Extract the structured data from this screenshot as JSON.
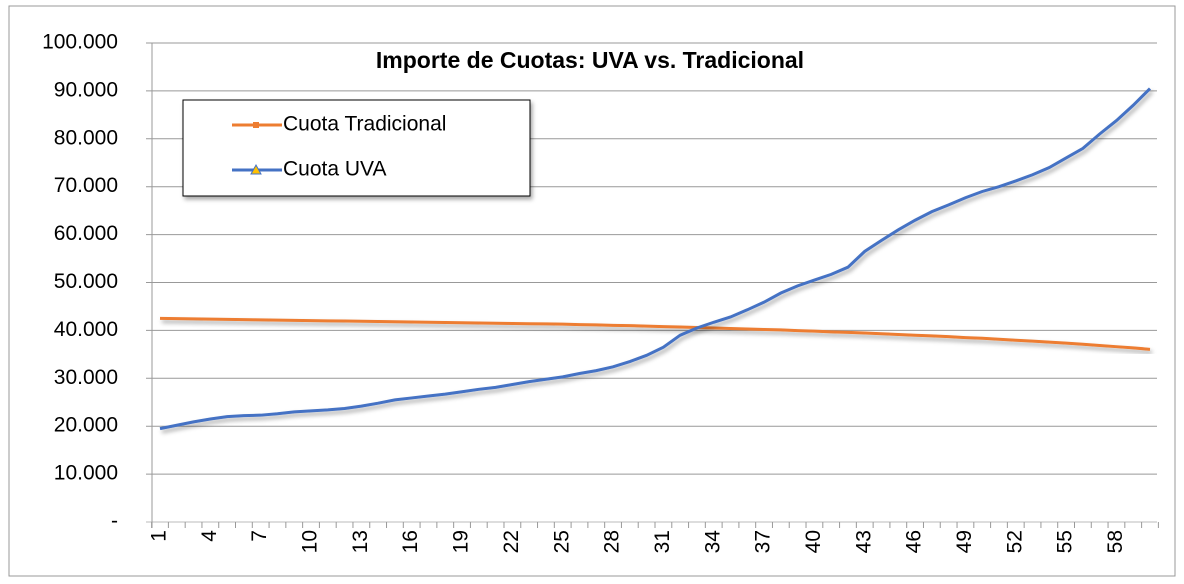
{
  "chart_data": {
    "type": "line",
    "title": "Importe de Cuotas: UVA vs. Tradicional",
    "categories": [
      "1",
      null,
      null,
      "4",
      null,
      null,
      "7",
      null,
      null,
      "10",
      null,
      null,
      "13",
      null,
      null,
      "16",
      null,
      null,
      "19",
      null,
      null,
      "22",
      null,
      null,
      "25",
      null,
      null,
      "28",
      null,
      null,
      "31",
      null,
      null,
      "34",
      null,
      null,
      "37",
      null,
      null,
      "40",
      null,
      null,
      "43",
      null,
      null,
      "46",
      null,
      null,
      "49",
      null,
      null,
      "52",
      null,
      null,
      "55",
      null,
      null,
      "58",
      null,
      null
    ],
    "series": [
      {
        "name": "Cuota Tradicional",
        "color": "#ed7d31",
        "marker": "square",
        "values": [
          42500,
          42450,
          42400,
          42350,
          42300,
          42250,
          42200,
          42150,
          42100,
          42050,
          42000,
          41950,
          41900,
          41850,
          41800,
          41750,
          41700,
          41650,
          41600,
          41550,
          41500,
          41450,
          41400,
          41350,
          41300,
          41200,
          41150,
          41050,
          41000,
          40900,
          40800,
          40700,
          40600,
          40500,
          40400,
          40300,
          40200,
          40100,
          39950,
          39850,
          39700,
          39600,
          39450,
          39300,
          39150,
          39000,
          38850,
          38700,
          38500,
          38350,
          38150,
          37950,
          37750,
          37550,
          37350,
          37100,
          36850,
          36600,
          36350,
          36050
        ]
      },
      {
        "name": "Cuota UVA",
        "color": "#4472c4",
        "marker": "triangle",
        "values": [
          19500,
          20200,
          20900,
          21500,
          22000,
          22200,
          22300,
          22600,
          23000,
          23200,
          23400,
          23700,
          24200,
          24800,
          25500,
          25900,
          26300,
          26700,
          27200,
          27700,
          28100,
          28700,
          29300,
          29800,
          30300,
          31000,
          31600,
          32400,
          33500,
          34800,
          36500,
          39000,
          40500,
          41700,
          42800,
          44300,
          45900,
          47800,
          49300,
          50500,
          51700,
          53200,
          56500,
          58800,
          61000,
          63000,
          64800,
          66200,
          67700,
          69000,
          70000,
          71200,
          72500,
          74000,
          76000,
          78000,
          81000,
          83800,
          87000,
          90500
        ]
      }
    ],
    "ylim": [
      0,
      100000
    ],
    "yticks": [
      {
        "value": 0,
        "label": "-"
      },
      {
        "value": 10000,
        "label": "10.000"
      },
      {
        "value": 20000,
        "label": "20.000"
      },
      {
        "value": 30000,
        "label": "30.000"
      },
      {
        "value": 40000,
        "label": "40.000"
      },
      {
        "value": 50000,
        "label": "50.000"
      },
      {
        "value": 60000,
        "label": "60.000"
      },
      {
        "value": 70000,
        "label": "70.000"
      },
      {
        "value": 80000,
        "label": "80.000"
      },
      {
        "value": 90000,
        "label": "90.000"
      },
      {
        "value": 100000,
        "label": "100.000"
      }
    ],
    "grid": true,
    "legend": "upper left"
  }
}
